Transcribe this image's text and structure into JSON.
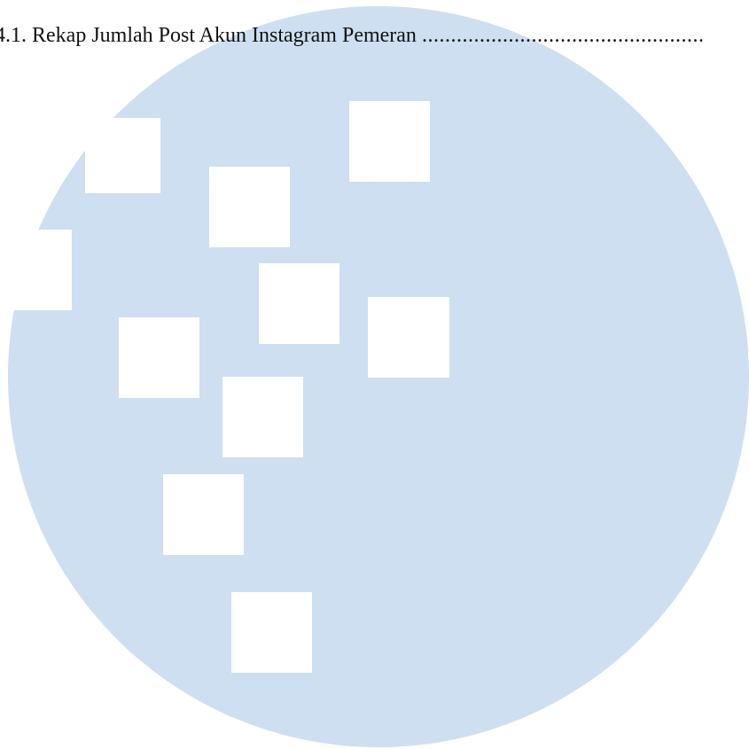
{
  "toc": {
    "entry": "4.1. Rekap Jumlah Post Akun Instagram Pemeran ",
    "leader": "................................................."
  },
  "watermark": {
    "color": "#cddff0",
    "icon": "square-pattern-logo"
  }
}
